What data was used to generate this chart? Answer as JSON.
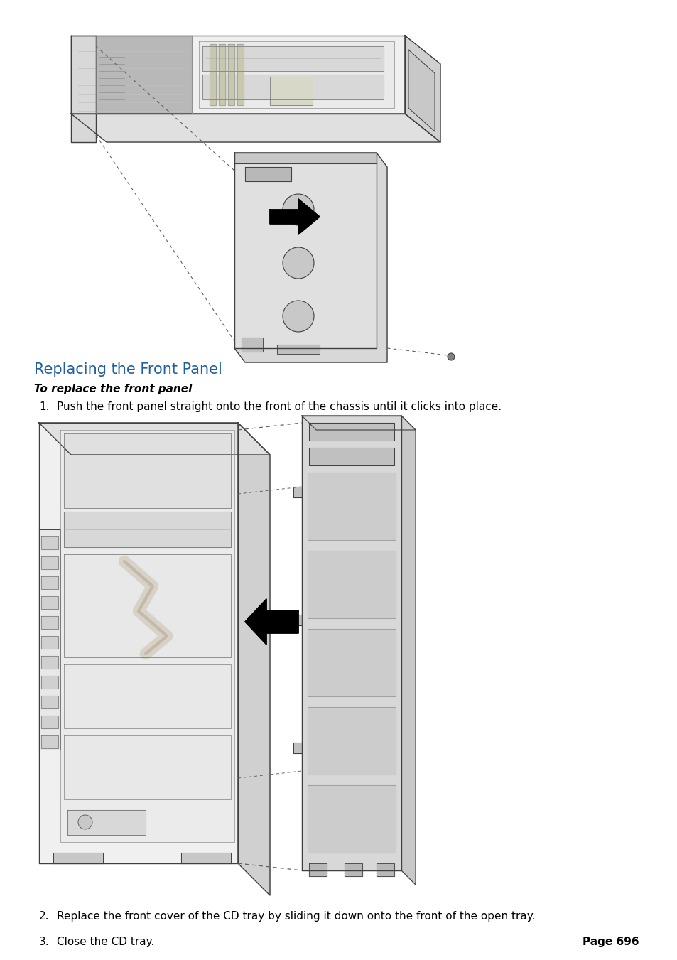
{
  "title": "Replacing the Front Panel",
  "subtitle": "To replace the front panel",
  "step1": "Push the front panel straight onto the front of the chassis until it clicks into place.",
  "step2": "Replace the front cover of the CD tray by sliding it down onto the front of the open tray.",
  "step3": "Close the CD tray.",
  "page_num": "Page 696",
  "title_color": "#2060a0",
  "subtitle_color": "#000000",
  "body_color": "#000000",
  "bg_color": "#ffffff",
  "fig_width": 9.54,
  "fig_height": 13.51
}
